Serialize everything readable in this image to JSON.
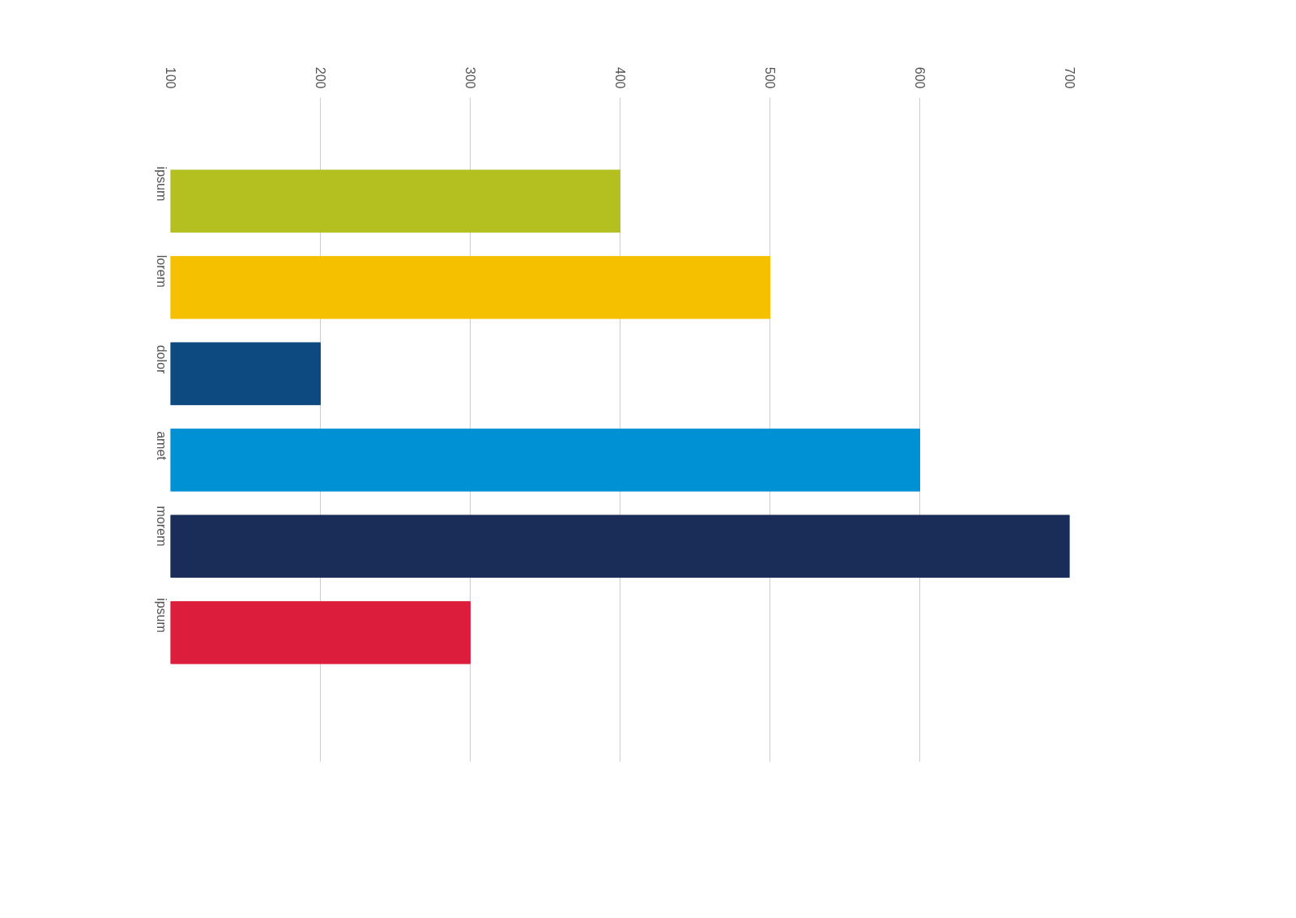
{
  "chart_data": {
    "type": "bar",
    "orientation": "horizontal",
    "categories": [
      "ipsum",
      "lorem",
      "dolor",
      "amet",
      "morem",
      "ipsum"
    ],
    "values": [
      400,
      500,
      200,
      600,
      700,
      300
    ],
    "colors": [
      "#b3c01f",
      "#f5c000",
      "#0d4a80",
      "#0091d5",
      "#1a2d58",
      "#dc1e3c"
    ],
    "xlim": [
      100,
      700
    ],
    "xticks": [
      100,
      200,
      300,
      400,
      500,
      600,
      700
    ],
    "grid": "x"
  }
}
